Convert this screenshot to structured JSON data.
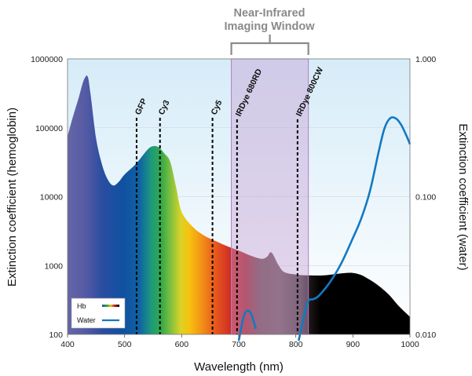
{
  "chart_data": {
    "type": "area",
    "xlabel": "Wavelength (nm)",
    "ylabel_left": "Extinction coefficient (hemoglobin)",
    "ylabel_right": "Extinction coefficient (water)",
    "xlim": [
      400,
      1000
    ],
    "x_ticks": [
      "400",
      "500",
      "600",
      "700",
      "800",
      "900",
      "1000"
    ],
    "y_left_log": true,
    "y_left_lim": [
      100,
      1000000
    ],
    "y_left_ticks": [
      "100",
      "1000",
      "10000",
      "100000",
      "1000000"
    ],
    "y_right_log": true,
    "y_right_lim": [
      0.01,
      1.0
    ],
    "y_right_ticks": [
      "0.010",
      "0.100",
      "1.000"
    ],
    "window": {
      "title_line1": "Near-Infrared",
      "title_line2": "Imaging Window",
      "x_range": [
        687,
        822
      ]
    },
    "markers": [
      {
        "label": "GFP",
        "x": 521
      },
      {
        "label": "Cy3",
        "x": 562
      },
      {
        "label": "Cy5",
        "x": 654
      },
      {
        "label": "IRDye 680RD",
        "x": 697
      },
      {
        "label": "IRDye 800CW",
        "x": 803
      }
    ],
    "series": [
      {
        "name": "Hb",
        "x": [
          400,
          410,
          420,
          428,
          435,
          440,
          450,
          460,
          470,
          480,
          490,
          500,
          520,
          540,
          550,
          560,
          570,
          580,
          590,
          600,
          620,
          640,
          660,
          680,
          700,
          720,
          740,
          750,
          755,
          760,
          770,
          780,
          800,
          820,
          850,
          900,
          930,
          960,
          980,
          1000
        ],
        "y": [
          75000,
          150000,
          280000,
          480000,
          560000,
          320000,
          70000,
          30000,
          18000,
          14500,
          16500,
          21000,
          30000,
          48000,
          54000,
          52000,
          42000,
          32000,
          14000,
          6000,
          3600,
          2700,
          2250,
          1900,
          1650,
          1400,
          1250,
          1350,
          1550,
          1450,
          1000,
          800,
          740,
          720,
          720,
          780,
          620,
          400,
          260,
          180
        ]
      },
      {
        "name": "Water",
        "x": [
          805,
          815,
          822,
          830,
          840,
          860,
          880,
          900,
          915,
          930,
          945,
          955,
          965,
          975,
          985,
          995,
          1000
        ],
        "y": [
          0.009,
          0.014,
          0.0175,
          0.018,
          0.019,
          0.024,
          0.033,
          0.05,
          0.07,
          0.11,
          0.21,
          0.31,
          0.37,
          0.37,
          0.33,
          0.27,
          0.24
        ]
      }
    ],
    "water_left_lobe": {
      "x": [
        700,
        710,
        720,
        730
      ],
      "y": [
        0.009,
        0.014,
        0.0145,
        0.011
      ]
    },
    "legend": {
      "entries": [
        "Hb",
        "Water"
      ],
      "position": "bottom-left"
    }
  }
}
